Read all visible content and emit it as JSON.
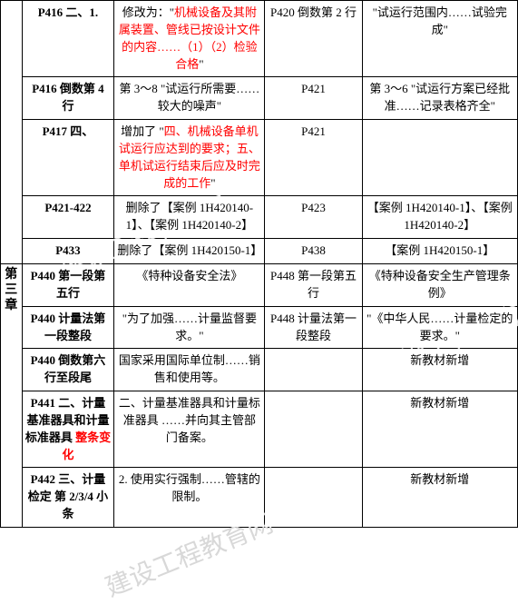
{
  "structure_type": "table",
  "colors": {
    "text": "#000000",
    "highlight": "#ff0000",
    "border": "#000000",
    "background": "#ffffff",
    "watermark": "#d8d8d8"
  },
  "typography": {
    "font_family": "SimSun",
    "base_fontsize": 13,
    "chapter_fontsize": 14
  },
  "watermark_text": "建设工程教育网",
  "chapter_label": "第三章",
  "rows": [
    {
      "c1": "P416 二、1.",
      "c2_pre": "修改为：\"",
      "c2_red": "机械设备及其附属装置、管线已按设计文件的内容……（1）（2）检验合格",
      "c2_post": "\"",
      "c3": "P420 倒数第 2 行",
      "c4": "\"试运行范围内……试验完成\""
    },
    {
      "c1": "P416 倒数第 4 行",
      "c2": "第 3～8 \"试运行所需要……较大的噪声\"",
      "c3": "P421",
      "c4": "第 3～6 \"试运行方案已经批准……记录表格齐全\""
    },
    {
      "c1": "P417 四、",
      "c2_pre": "增加了 \"",
      "c2_red": "四、机械设备单机试运行应达到的要求；五、单机试运行结束后应及时完成的工作",
      "c2_post": "\"",
      "c3": "P421",
      "c4": ""
    },
    {
      "c1": "P421-422",
      "c2": "删除了【案例 1H420140-1】、【案例 1H420140-2】",
      "c3": "P423",
      "c4": "【案例 1H420140-1】、【案例 1H420140-2】"
    },
    {
      "c1": "P433",
      "c2": "删除了【案例 1H420150-1】",
      "c3": "P438",
      "c4": "【案例 1H420150-1】"
    },
    {
      "c1": "P440 第一段第五行",
      "c2": "《特种设备安全法》",
      "c3": "P448 第一段第五行",
      "c4": "《特种设备安全生产管理条例》"
    },
    {
      "c1": "P440 计量法第一段整段",
      "c2": "\"为了加强……计量监督要求。\"",
      "c3": "P448 计量法第一段整段",
      "c4": "\"《中华人民……计量检定的要求。\""
    },
    {
      "c1": "P440 倒数第六行至段尾",
      "c2": "国家采用国际单位制……销售和使用等。",
      "c3": "",
      "c4": "新教材新增"
    },
    {
      "c1_plain": "P441 二、计量基准器具和计量标准器具 ",
      "c1_red": "整条变化",
      "c2": "二、计量基准器具和计量标准器具 ……并向其主管部门备案。",
      "c3": "",
      "c4": "新教材新增"
    },
    {
      "c1": "P442 三、计量检定 第 2/3/4 小条",
      "c2": "2. 使用实行强制……管辖的限制。",
      "c3": "",
      "c4": "新教材新增"
    }
  ]
}
